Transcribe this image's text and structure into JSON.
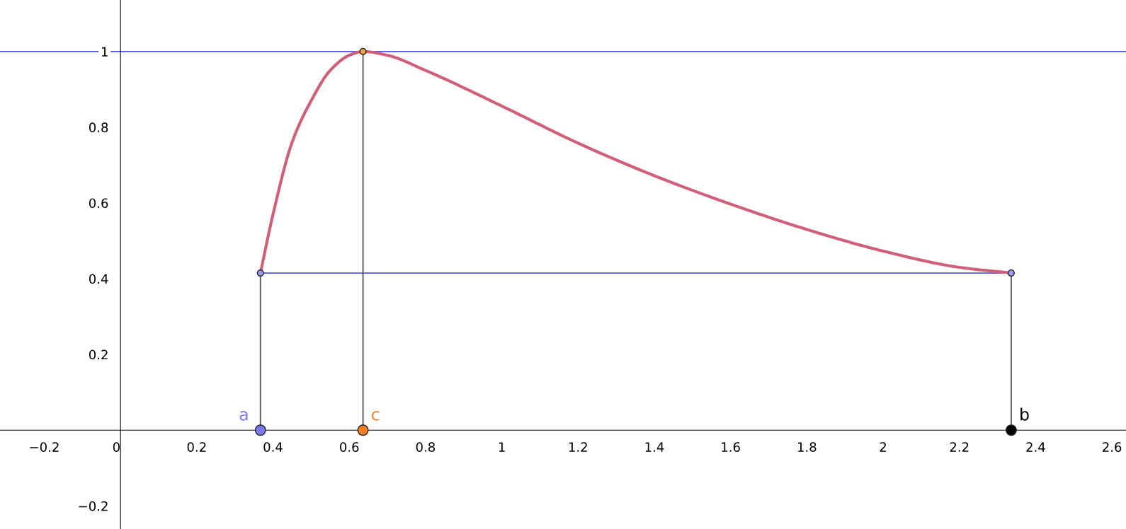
{
  "chart_data": {
    "type": "line",
    "xlim": [
      -0.316,
      2.637
    ],
    "ylim": [
      -0.261,
      1.136
    ],
    "xticks": [
      -0.2,
      {
        "value": 0,
        "label": "0"
      },
      0.2,
      0.4,
      0.6,
      0.8,
      1,
      1.2,
      1.4,
      1.6,
      1.8,
      2,
      2.2,
      2.4,
      2.6
    ],
    "yticks": [
      -0.2,
      0.2,
      0.4,
      0.6,
      0.8,
      1
    ],
    "grid": false,
    "legend": false,
    "ref_lines": [
      {
        "axis": "y",
        "value": 1,
        "color": "#5555e0"
      }
    ],
    "series": [
      {
        "color": "#d0607a",
        "x": [
          0.367,
          0.4,
          0.45,
          0.5,
          0.55,
          0.6,
          0.636,
          0.7,
          0.8,
          1.0,
          1.2,
          1.4,
          1.6,
          1.8,
          2.0,
          2.2,
          2.336
        ],
        "values": [
          0.415,
          0.57,
          0.76,
          0.87,
          0.95,
          0.99,
          1,
          0.99,
          0.95,
          0.856,
          0.758,
          0.672,
          0.597,
          0.53,
          0.473,
          0.43,
          0.415
        ]
      },
      {
        "type": "line",
        "color": "#5555e0",
        "x": [
          0.367,
          2.336
        ],
        "values": [
          0.415,
          0.415
        ]
      },
      {
        "type": "line",
        "color": "#555555",
        "x": [
          0.367,
          0.367
        ],
        "values": [
          0,
          0.415
        ]
      },
      {
        "type": "line",
        "color": "#555555",
        "x": [
          0.636,
          0.636
        ],
        "values": [
          0,
          1
        ]
      },
      {
        "type": "line",
        "color": "#555555",
        "x": [
          2.336,
          2.336
        ],
        "values": [
          0,
          0.415
        ]
      },
      {
        "type": "scatter",
        "marker": "circle",
        "color": "#9a9af0",
        "x": [
          0.367,
          2.336
        ],
        "values": [
          0.415,
          0.415
        ]
      },
      {
        "type": "scatter",
        "marker": "circle",
        "color": "#f0a040",
        "x": [
          0.636
        ],
        "values": [
          1
        ]
      },
      {
        "type": "scatter",
        "marker": "circle",
        "name": "a",
        "color": "#7b7bf0",
        "x": [
          0.367
        ],
        "values": [
          0
        ]
      },
      {
        "type": "scatter",
        "marker": "circle",
        "name": "c",
        "color": "#f08020",
        "x": [
          0.636
        ],
        "values": [
          0
        ]
      },
      {
        "type": "scatter",
        "marker": "circle",
        "name": "b",
        "color": "#000000",
        "x": [
          2.336
        ],
        "values": [
          0
        ]
      }
    ]
  }
}
